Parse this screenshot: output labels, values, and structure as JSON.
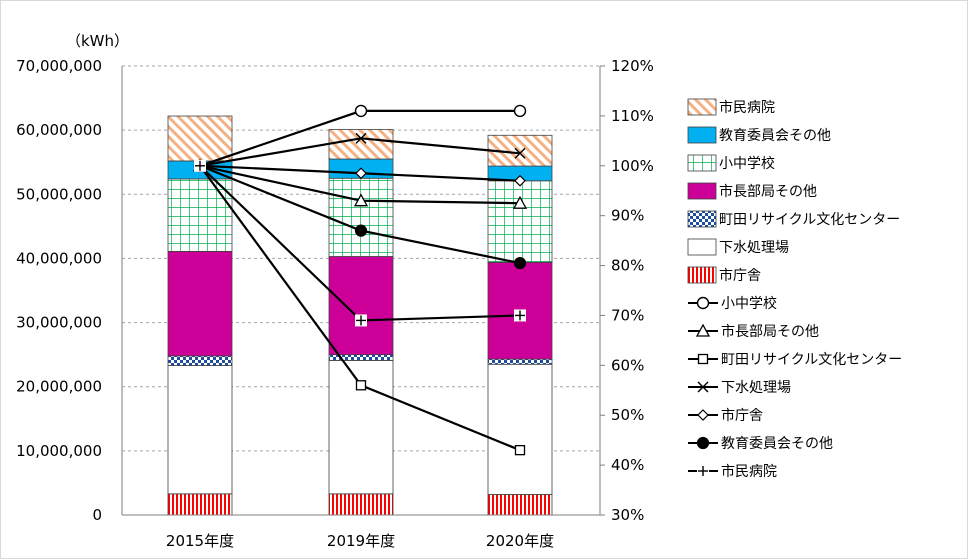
{
  "chart_data": {
    "type": "bar",
    "stacked": true,
    "categories": [
      "2015年度",
      "2019年度",
      "2020年度"
    ],
    "y_left": {
      "unit_label": "（kWh）",
      "lim": [
        0,
        70000000
      ],
      "ticks": [
        "0",
        "10,000,000",
        "20,000,000",
        "30,000,000",
        "40,000,000",
        "50,000,000",
        "60,000,000",
        "70,000,000"
      ]
    },
    "y_right": {
      "lim": [
        30,
        120
      ],
      "ticks": [
        "30%",
        "40%",
        "50%",
        "60%",
        "70%",
        "80%",
        "90%",
        "100%",
        "110%",
        "120%"
      ]
    },
    "grid": true,
    "legend_position": "right",
    "bar_series": [
      {
        "name": "市庁舎",
        "values": [
          3300000,
          3300000,
          3200000
        ],
        "color": "#ff0000",
        "pattern": "vlines"
      },
      {
        "name": "下水処理場",
        "values": [
          20000000,
          20800000,
          20300000
        ],
        "color": "#ffffff",
        "pattern": "solid"
      },
      {
        "name": "町田リサイクル文化センター",
        "values": [
          1500000,
          900000,
          800000
        ],
        "color": "#1f4e9e",
        "pattern": "checker"
      },
      {
        "name": "市長部局その他",
        "values": [
          16300000,
          15300000,
          15100000
        ],
        "color": "#cc0099",
        "pattern": "solid"
      },
      {
        "name": "小中学校",
        "values": [
          11300000,
          12200000,
          12700000
        ],
        "color": "#00b050",
        "pattern": "grid"
      },
      {
        "name": "教育委員会その他",
        "values": [
          2800000,
          3000000,
          2300000
        ],
        "color": "#00b0f0",
        "pattern": "solid"
      },
      {
        "name": "市民病院",
        "values": [
          7000000,
          4600000,
          4800000
        ],
        "color": "#f4b183",
        "pattern": "diag"
      }
    ],
    "line_series": [
      {
        "name": "小中学校",
        "values": [
          100,
          111,
          111
        ],
        "marker": "circle-open"
      },
      {
        "name": "市長部局その他",
        "values": [
          100,
          93,
          92.5
        ],
        "marker": "triangle-open"
      },
      {
        "name": "町田リサイクル文化センター",
        "values": [
          100,
          56,
          43
        ],
        "marker": "square-open"
      },
      {
        "name": "下水処理場",
        "values": [
          100,
          105.5,
          102.5
        ],
        "marker": "x"
      },
      {
        "name": "市庁舎",
        "values": [
          100,
          98.5,
          97
        ],
        "marker": "diamond-open"
      },
      {
        "name": "教育委員会その他",
        "values": [
          100,
          87,
          80.5
        ],
        "marker": "circle-filled"
      },
      {
        "name": "市民病院",
        "values": [
          100,
          69,
          70
        ],
        "marker": "plus"
      }
    ],
    "legend_order": [
      {
        "kind": "bar",
        "name": "市民病院"
      },
      {
        "kind": "bar",
        "name": "教育委員会その他"
      },
      {
        "kind": "bar",
        "name": "小中学校"
      },
      {
        "kind": "bar",
        "name": "市長部局その他"
      },
      {
        "kind": "bar",
        "name": "町田リサイクル文化センター"
      },
      {
        "kind": "bar",
        "name": "下水処理場"
      },
      {
        "kind": "bar",
        "name": "市庁舎"
      },
      {
        "kind": "line",
        "name": "小中学校"
      },
      {
        "kind": "line",
        "name": "市長部局その他"
      },
      {
        "kind": "line",
        "name": "町田リサイクル文化センター"
      },
      {
        "kind": "line",
        "name": "下水処理場"
      },
      {
        "kind": "line",
        "name": "市庁舎"
      },
      {
        "kind": "line",
        "name": "教育委員会その他"
      },
      {
        "kind": "line",
        "name": "市民病院"
      }
    ]
  }
}
